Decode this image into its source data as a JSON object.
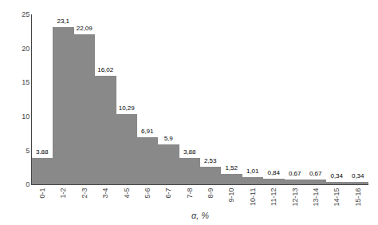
{
  "chart_data": {
    "type": "bar",
    "categories": [
      "0-1",
      "1-2",
      "2-3",
      "3-4",
      "4-5",
      "5-6",
      "6-7",
      "7-8",
      "8-9",
      "9-10",
      "10-11",
      "11-12",
      "12-13",
      "13-14",
      "14-15",
      "15-16"
    ],
    "values": [
      3.88,
      23.1,
      22.09,
      16.02,
      10.29,
      6.91,
      5.9,
      3.88,
      2.53,
      1.52,
      1.01,
      0.84,
      0.67,
      0.67,
      0.34,
      0.34
    ],
    "value_labels": [
      "3.88",
      "23,1",
      "22,09",
      "16,02",
      "10,29",
      "6,91",
      "5,9",
      "3,88",
      "2,53",
      "1,52",
      "1,01",
      "0,84",
      "0,67",
      "0,67",
      "0,34",
      "0,34"
    ],
    "data_labels": true,
    "color": "#898989",
    "xlabel": "α, %",
    "ylim": [
      0,
      25
    ],
    "yticks": [
      0,
      5,
      10,
      15,
      20,
      25
    ],
    "grid": false
  }
}
